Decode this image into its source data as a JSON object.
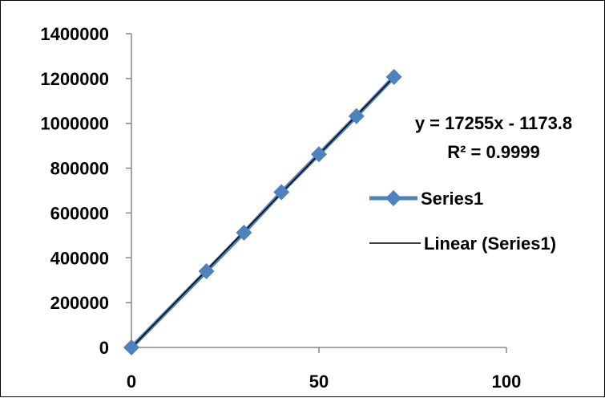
{
  "chart_data": {
    "type": "scatter",
    "x_ticks": [
      0,
      50,
      100
    ],
    "y_ticks": [
      0,
      200000,
      400000,
      600000,
      800000,
      1000000,
      1200000,
      1400000
    ],
    "xlim": [
      0,
      100
    ],
    "ylim": [
      0,
      1400000
    ],
    "grid": false,
    "legend_position": "right",
    "series": [
      {
        "name": "Series1",
        "color": "#4f81bd",
        "marker": "diamond",
        "x": [
          0,
          20,
          30,
          40,
          50,
          60,
          70
        ],
        "y": [
          0,
          340000,
          512000,
          693000,
          862000,
          1032000,
          1207000
        ]
      }
    ],
    "trendline": {
      "name": "Linear (Series1)",
      "color": "#000000",
      "slope": 17255,
      "intercept": -1173.8,
      "equation": "y = 17255x - 1173.8",
      "r_squared": "R² = 0.9999"
    }
  }
}
